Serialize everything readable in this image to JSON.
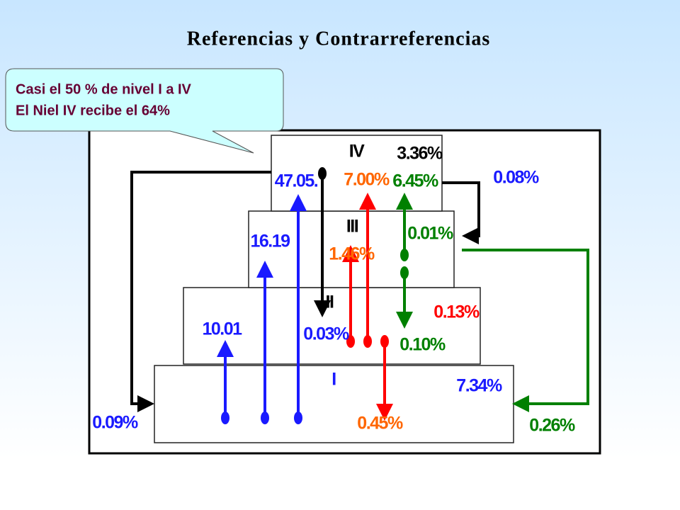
{
  "title": "Referencias y Contrarreferencias",
  "callout": {
    "lines": [
      "Casi el 50 % de nivel I a IV",
      "El Niel IV recibe el 64%"
    ]
  },
  "labels": [
    {
      "text": "IV",
      "color": "#000000"
    },
    {
      "text": "3.36%",
      "color": "#000000"
    },
    {
      "text": "47.05.",
      "color": "#1a1aff"
    },
    {
      "text": "7.00%",
      "color": "#ff6600"
    },
    {
      "text": "6.45%",
      "color": "#008000"
    },
    {
      "text": "0.08%",
      "color": "#1a1aff"
    },
    {
      "text": "III",
      "color": "#000000"
    },
    {
      "text": "0.01%",
      "color": "#008000"
    },
    {
      "text": "16.19",
      "color": "#1a1aff"
    },
    {
      "text": "1.46%",
      "color": "#ff6600"
    },
    {
      "text": "II",
      "color": "#000000"
    },
    {
      "text": "0.13%",
      "color": "#ff0000"
    },
    {
      "text": "10.01",
      "color": "#1a1aff"
    },
    {
      "text": "0.03%",
      "color": "#1a1aff"
    },
    {
      "text": "0.10%",
      "color": "#008000"
    },
    {
      "text": "I",
      "color": "#1a1aff"
    },
    {
      "text": "7.34%",
      "color": "#1a1aff"
    },
    {
      "text": "0.09%",
      "color": "#1a1aff"
    },
    {
      "text": "0.45%",
      "color": "#ff6600"
    },
    {
      "text": "0.26%",
      "color": "#008000"
    }
  ]
}
